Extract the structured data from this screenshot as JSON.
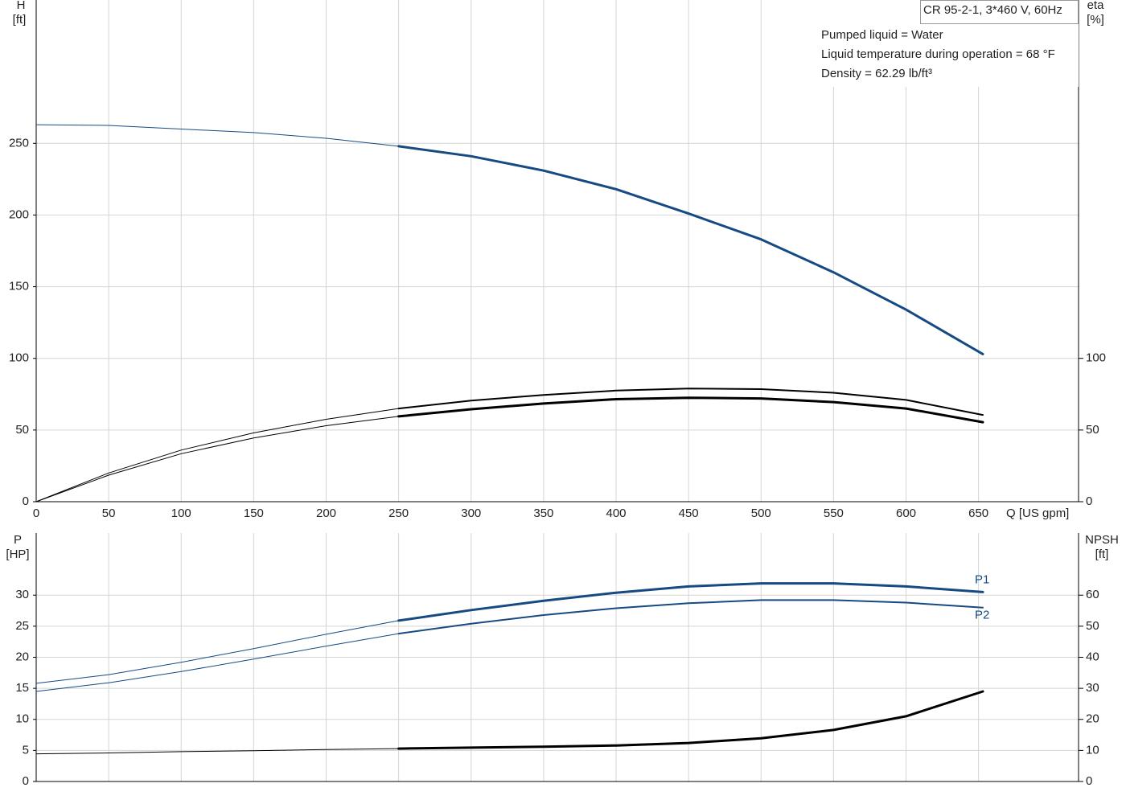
{
  "chart_data": [
    {
      "type": "line",
      "title": "CR 95-2-1, 3*460 V, 60Hz",
      "notes": [
        "Pumped liquid = Water",
        "Liquid temperature during operation = 68 °F",
        "Density = 62.29 lb/ft³"
      ],
      "ylabel": "H",
      "yunit": "[ft]",
      "y2label": "eta",
      "y2unit": "[%]",
      "xlabel": "Q [US gpm]",
      "x": [
        0,
        50,
        100,
        150,
        200,
        250,
        300,
        350,
        400,
        450,
        500,
        550,
        600,
        653
      ],
      "xlim": [
        0,
        719
      ],
      "xticks": [
        0,
        50,
        100,
        150,
        200,
        250,
        300,
        350,
        400,
        450,
        500,
        550,
        600,
        650
      ],
      "ylim": [
        0,
        350
      ],
      "yticks": [
        0,
        50,
        100,
        150,
        200,
        250
      ],
      "y2lim": [
        0,
        350
      ],
      "y2ticks": [
        0,
        50,
        100
      ],
      "grid": true,
      "bold_from_x": 250,
      "series": [
        {
          "color": "#164a82",
          "values": [
            263,
            262.5,
            260,
            257.5,
            253.5,
            248,
            241,
            231,
            218,
            201,
            183,
            160,
            134,
            103
          ]
        },
        {
          "color": "#000000",
          "axis": "y2",
          "values": [
            0,
            20,
            36,
            48,
            57.5,
            65,
            70.5,
            74.5,
            77.5,
            79,
            78.5,
            76,
            71,
            60.5
          ]
        },
        {
          "color": "#000000",
          "axis": "y2",
          "values": [
            0,
            18.5,
            33.5,
            44.5,
            53,
            59.5,
            64.5,
            68.5,
            71.5,
            72.5,
            72,
            69.5,
            65,
            55.5
          ]
        }
      ]
    },
    {
      "type": "line",
      "ylabel": "P",
      "yunit": "[HP]",
      "y2label": "NPSH",
      "y2unit": "[ft]",
      "x": [
        0,
        50,
        100,
        150,
        200,
        250,
        300,
        350,
        400,
        450,
        500,
        550,
        600,
        653
      ],
      "xlim": [
        0,
        719
      ],
      "xticks": [
        0,
        50,
        100,
        150,
        200,
        250,
        300,
        350,
        400,
        450,
        500,
        550,
        600,
        650
      ],
      "ylim": [
        0,
        40
      ],
      "yticks": [
        0,
        5,
        10,
        15,
        20,
        25,
        30
      ],
      "y2lim": [
        0,
        80
      ],
      "y2ticks": [
        0,
        10,
        20,
        30,
        40,
        50,
        60
      ],
      "grid": true,
      "bold_from_x": 250,
      "series": [
        {
          "name": "P1",
          "color": "#164a82",
          "values": [
            15.8,
            17.2,
            19.2,
            21.4,
            23.7,
            25.9,
            27.6,
            29.1,
            30.4,
            31.4,
            31.9,
            31.9,
            31.4,
            30.5
          ]
        },
        {
          "name": "P2",
          "color": "#164a82",
          "values": [
            14.5,
            15.9,
            17.7,
            19.7,
            21.8,
            23.8,
            25.4,
            26.8,
            27.9,
            28.7,
            29.2,
            29.2,
            28.8,
            28
          ]
        },
        {
          "color": "#000000",
          "axis": "y2",
          "values": [
            8.9,
            9.2,
            9.6,
            9.9,
            10.3,
            10.6,
            10.9,
            11.2,
            11.6,
            12.4,
            13.9,
            16.6,
            21,
            29
          ]
        }
      ]
    }
  ]
}
